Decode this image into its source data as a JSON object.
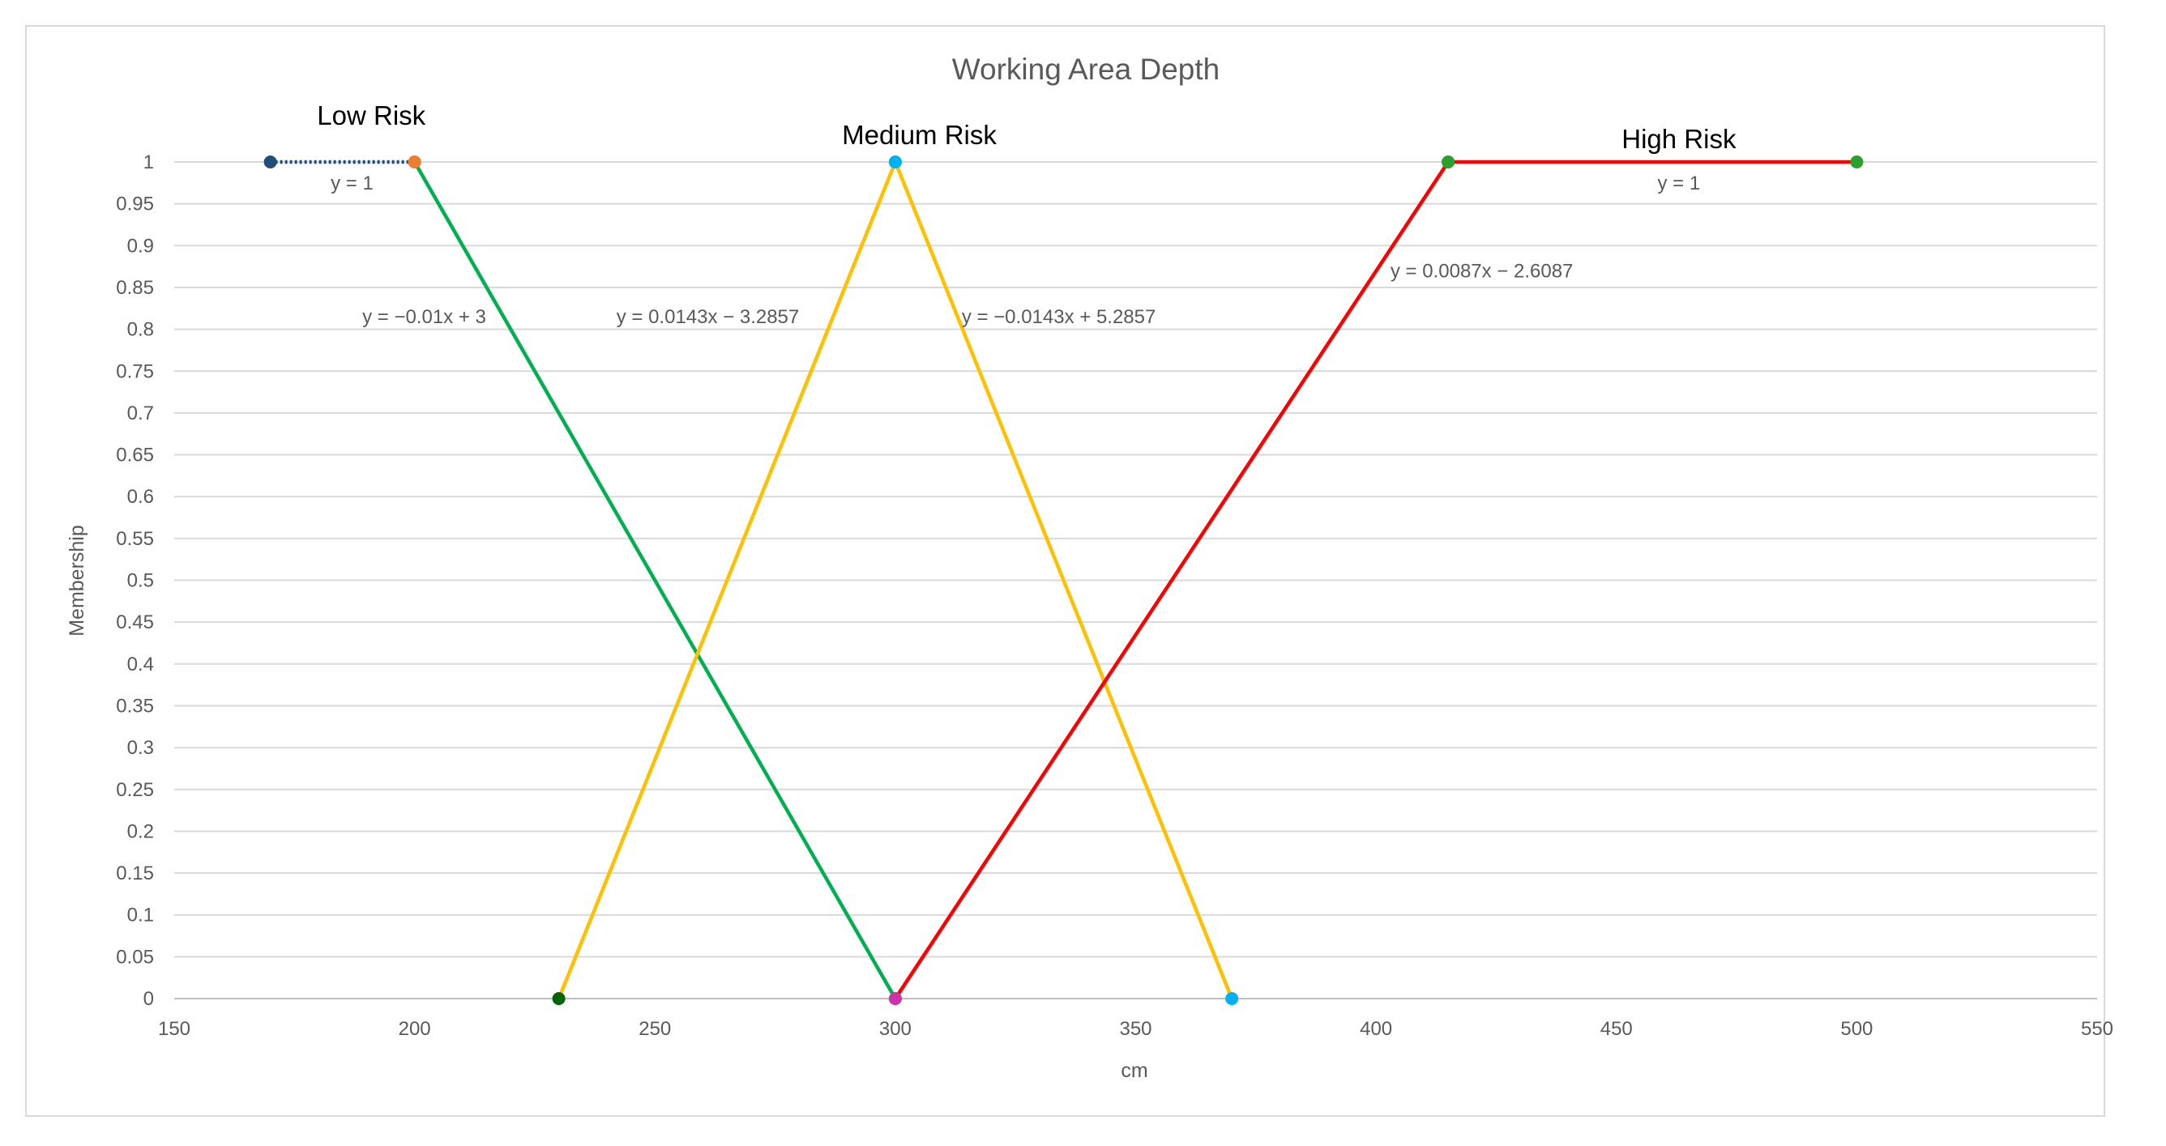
{
  "chart_data": {
    "type": "line",
    "title": "Working Area Depth",
    "xlabel": "cm",
    "ylabel": "Membership",
    "xlim": [
      150,
      550
    ],
    "ylim": [
      0,
      1
    ],
    "x_ticks": [
      "150",
      "200",
      "250",
      "300",
      "350",
      "400",
      "450",
      "500",
      "550"
    ],
    "y_ticks": [
      "0",
      "0.05",
      "0.1",
      "0.15",
      "0.2",
      "0.25",
      "0.3",
      "0.35",
      "0.4",
      "0.45",
      "0.5",
      "0.55",
      "0.6",
      "0.65",
      "0.7",
      "0.75",
      "0.8",
      "0.85",
      "0.9",
      "0.95",
      "1"
    ],
    "grid": true,
    "legend": "none",
    "series": [
      {
        "color": "#1f4e79",
        "marker_colors": [
          "#1f4e79",
          "#ed7d31"
        ],
        "points": [
          [
            170,
            1
          ],
          [
            200,
            1
          ]
        ],
        "dashed": true
      },
      {
        "color": "#00b050",
        "marker_colors": [
          "#ed7d31",
          "#00b050"
        ],
        "points": [
          [
            200,
            1
          ],
          [
            300,
            0
          ]
        ],
        "dashed": false
      },
      {
        "color": "#ffc000",
        "marker_colors": [
          "#006400",
          "#00b0f0"
        ],
        "points": [
          [
            230,
            0
          ],
          [
            300,
            1
          ]
        ],
        "dashed": false
      },
      {
        "color": "#ffc000",
        "marker_colors": [
          "#00b0f0",
          "#00b0f0"
        ],
        "points": [
          [
            300,
            1
          ],
          [
            370,
            0
          ]
        ],
        "dashed": false
      },
      {
        "color": "#ff0000",
        "marker_colors": [
          "#cc33aa",
          "#2ca02c"
        ],
        "points": [
          [
            300,
            0
          ],
          [
            415,
            1
          ]
        ],
        "dashed": false
      },
      {
        "color": "#ff0000",
        "marker_colors": [
          "#2ca02c",
          "#2ca02c"
        ],
        "points": [
          [
            415,
            1
          ],
          [
            500,
            1
          ]
        ],
        "dashed": false
      }
    ],
    "group_labels": [
      {
        "text": "Low Risk",
        "x": 191,
        "y": 1.055
      },
      {
        "text": "Medium Risk",
        "x": 305,
        "y": 1.032
      },
      {
        "text": "High Risk",
        "x": 463,
        "y": 1.027
      }
    ],
    "trendline_labels": [
      {
        "text": "y = 1",
        "x": 187,
        "y": 0.975
      },
      {
        "text": "y = −0.01x + 3",
        "x": 202,
        "y": 0.815
      },
      {
        "text": "y = 0.0143x − 3.2857",
        "x": 261,
        "y": 0.815
      },
      {
        "text": "y = −0.0143x + 5.2857",
        "x": 334,
        "y": 0.815
      },
      {
        "text": "y = 0.0087x − 2.6087",
        "x": 422,
        "y": 0.87
      },
      {
        "text": "y = 1",
        "x": 463,
        "y": 0.975
      }
    ]
  }
}
